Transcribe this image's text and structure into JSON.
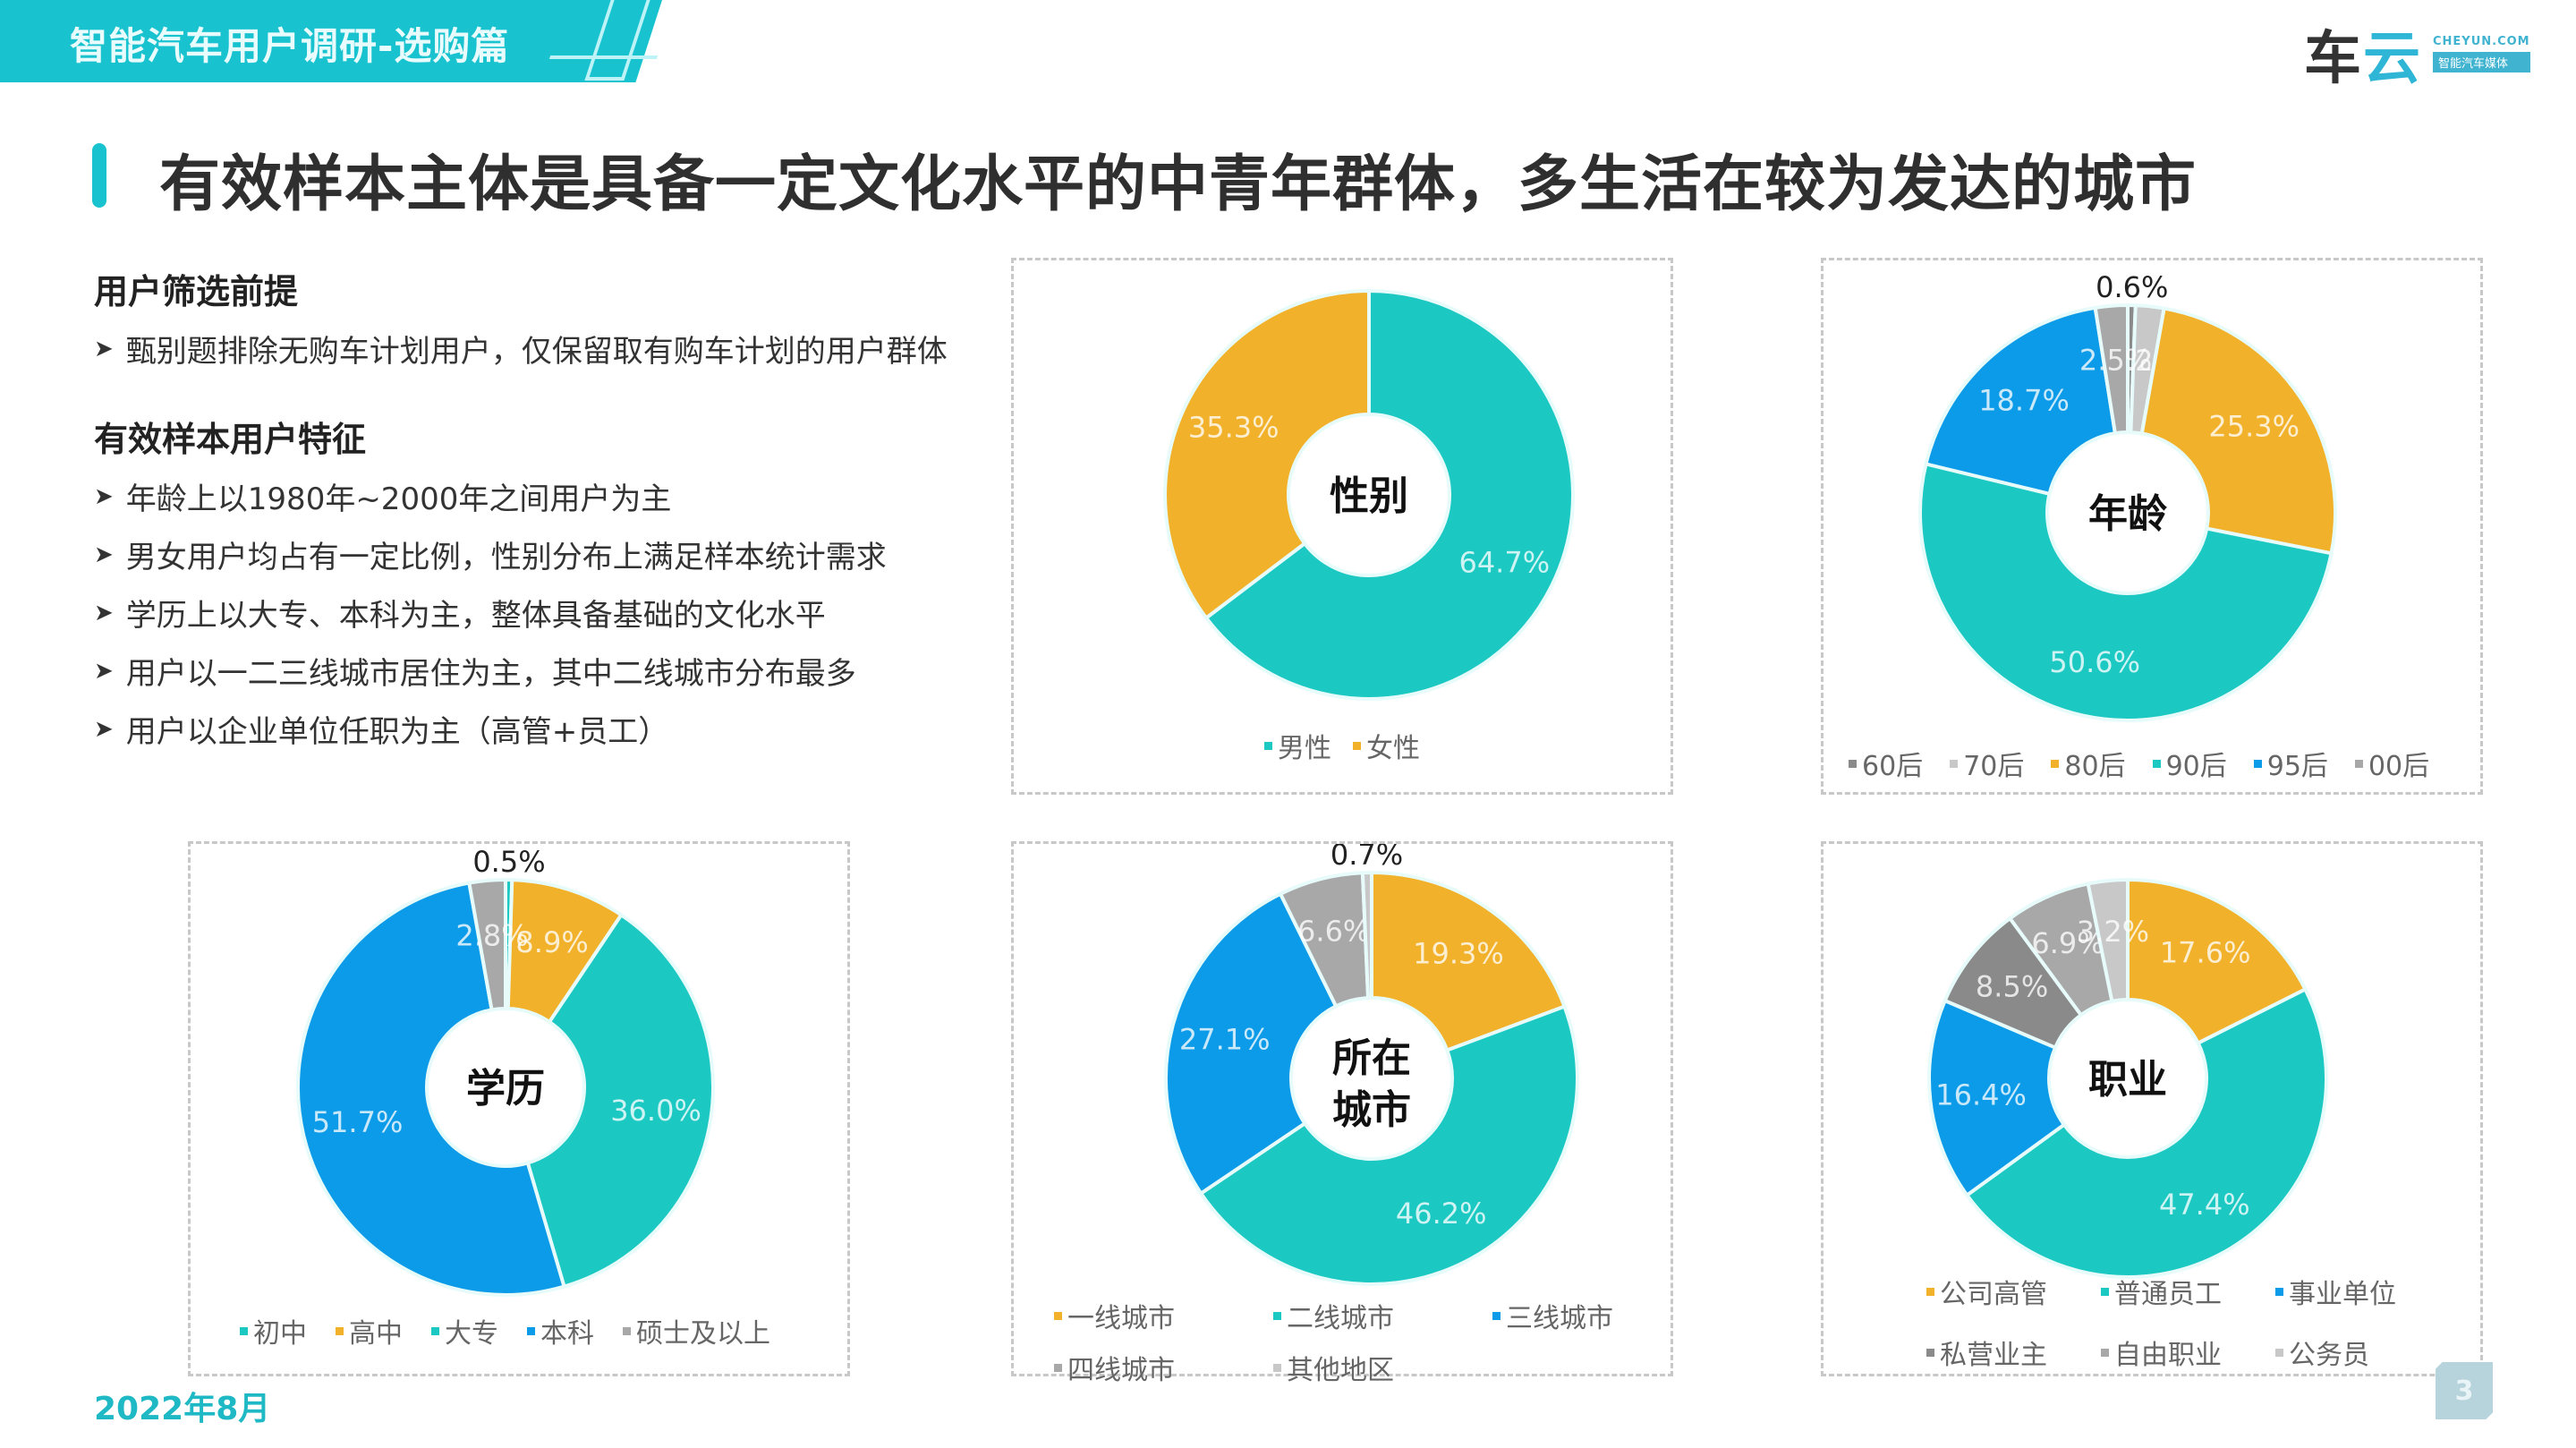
{
  "header": {
    "banner_title": "智能汽车用户调研-选购篇",
    "logo_text_main": "车",
    "logo_text_cloud": "云",
    "logo_en": "CHEYUN.COM",
    "logo_cn": "智能汽车媒体"
  },
  "page_title": "有效样本主体是具备一定文化水平的中青年群体，多生活在较为发达的城市",
  "left_panel": {
    "section1_title": "用户筛选前提",
    "section1_bullets": [
      "甄别题排除无购车计划用户，仅保留取有购车计划的用户群体"
    ],
    "section2_title": "有效样本用户特征",
    "section2_bullets": [
      "年龄上以1980年~2000年之间用户为主",
      "男女用户均占有一定比例，性别分布上满足样本统计需求",
      "学历上以大专、本科为主，整体具备基础的文化水平",
      "用户以一二三线城市居住为主，其中二线城市分布最多",
      "用户以企业单位任职为主（高管+员工）"
    ]
  },
  "colors": {
    "teal": "#1bc8c2",
    "orange": "#f2b12b",
    "blue": "#0c9be8",
    "gray": "#a8a8a8",
    "dark_gray": "#8a8a8a",
    "light_gray": "#c8c8c8",
    "accent": "#18c3cf"
  },
  "chart_data": [
    {
      "type": "pie",
      "subtype": "donut",
      "title": "性别",
      "categories": [
        "男性",
        "女性"
      ],
      "values": [
        64.7,
        35.3
      ],
      "labels": [
        "64.7%",
        "35.3%"
      ],
      "colors": [
        "#1bc8c2",
        "#f2b12b"
      ],
      "legend_position": "bottom"
    },
    {
      "type": "pie",
      "subtype": "donut",
      "title": "年龄",
      "categories": [
        "60后",
        "70后",
        "80后",
        "90后",
        "95后",
        "00后"
      ],
      "values": [
        0.6,
        2.2,
        25.3,
        50.6,
        18.7,
        2.5
      ],
      "labels": [
        "0.6%",
        "2.2%",
        "25.3%",
        "50.6%",
        "18.7%",
        "2.5%"
      ],
      "colors": [
        "#8a8a8a",
        "#c8c8c8",
        "#f2b12b",
        "#1bc8c2",
        "#0c9be8",
        "#a8a8a8"
      ],
      "legend_position": "bottom"
    },
    {
      "type": "pie",
      "subtype": "donut",
      "title": "学历",
      "categories": [
        "初中",
        "高中",
        "大专",
        "本科",
        "硕士及以上"
      ],
      "values": [
        0.5,
        8.9,
        36.0,
        51.7,
        2.8
      ],
      "labels": [
        "0.5%",
        "8.9%",
        "36.0%",
        "51.7%",
        "2.8%"
      ],
      "colors": [
        "#1bc8c2",
        "#f2b12b",
        "#1bc8c2",
        "#0c9be8",
        "#a8a8a8"
      ],
      "legend_position": "bottom"
    },
    {
      "type": "pie",
      "subtype": "donut",
      "title": "所在城市",
      "categories": [
        "一线城市",
        "二线城市",
        "三线城市",
        "四线城市",
        "其他地区"
      ],
      "values": [
        19.3,
        46.2,
        27.1,
        6.6,
        0.7
      ],
      "labels": [
        "19.3%",
        "46.2%",
        "27.1%",
        "6.6%",
        "0.7%"
      ],
      "colors": [
        "#f2b12b",
        "#1bc8c2",
        "#0c9be8",
        "#a8a8a8",
        "#c8c8c8"
      ],
      "legend_position": "bottom"
    },
    {
      "type": "pie",
      "subtype": "donut",
      "title": "职业",
      "categories": [
        "公司高管",
        "普通员工",
        "事业单位",
        "私营业主",
        "自由职业",
        "公务员"
      ],
      "values": [
        17.6,
        47.4,
        16.4,
        8.5,
        6.9,
        3.2
      ],
      "labels": [
        "17.6%",
        "47.4%",
        "16.4%",
        "8.5%",
        "6.9%",
        "3.2%"
      ],
      "colors": [
        "#f2b12b",
        "#1bc8c2",
        "#0c9be8",
        "#8a8a8a",
        "#a8a8a8",
        "#c8c8c8"
      ],
      "legend_position": "bottom"
    }
  ],
  "footer": {
    "date": "2022年8月",
    "page_number": "3"
  }
}
